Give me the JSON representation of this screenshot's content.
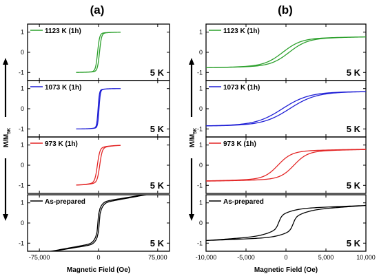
{
  "figure": {
    "ylabel_main": "M/M",
    "ylabel_sub": "5K",
    "xlabel": "Magnetic Field (Oe)"
  },
  "chart_data": [
    {
      "type": "line",
      "title": "(a)",
      "xlabel": "Magnetic Field (Oe)",
      "ylabel": "M/M5K",
      "xlim": [
        -90000,
        90000
      ],
      "xticks": [
        -75000,
        0,
        75000
      ],
      "xtick_labels": [
        "-75,000",
        "0",
        "75,000"
      ],
      "grid": false,
      "panels": [
        {
          "legend": "1123 K (1h)",
          "color": "#2ca02c",
          "annotation": "5 K",
          "ylim": [
            -1.4,
            1.4
          ],
          "yticks": [
            -1,
            0,
            1
          ],
          "loop": {
            "hmax": 28000,
            "hc": 1200,
            "ms": 1.0,
            "sat": 0.94,
            "width": 2600
          }
        },
        {
          "legend": "1073 K (1h)",
          "color": "#1f1fd6",
          "annotation": "5 K",
          "ylim": [
            -1.4,
            1.4
          ],
          "yticks": [
            -1,
            0,
            1
          ],
          "loop": {
            "hmax": 28000,
            "hc": 600,
            "ms": 1.0,
            "sat": 0.93,
            "width": 1700
          }
        },
        {
          "legend": "973 K (1h)",
          "color": "#e32626",
          "annotation": "5 K",
          "ylim": [
            -1.4,
            1.4
          ],
          "yticks": [
            -1,
            0,
            1
          ],
          "loop": {
            "hmax": 28000,
            "hc": 1500,
            "ms": 1.0,
            "sat": 0.85,
            "width": 3200
          }
        },
        {
          "legend": "As-prepared",
          "color": "#000000",
          "annotation": "5 K",
          "ylim": [
            -1.4,
            1.4
          ],
          "yticks": [
            -1,
            0,
            1
          ],
          "loop": {
            "hmax": 85000,
            "hc": 800,
            "ms": 1.0,
            "sat": 0.42,
            "width": 900,
            "slope": 6.8e-06,
            "split": 0.06
          }
        }
      ]
    },
    {
      "type": "line",
      "title": "(b)",
      "xlabel": "Magnetic Field (Oe)",
      "ylabel": "M/M5K",
      "xlim": [
        -10000,
        10000
      ],
      "xticks": [
        -10000,
        -5000,
        0,
        5000,
        10000
      ],
      "xtick_labels": [
        "-10,000",
        "-5,000",
        "0",
        "5,000",
        "10,000"
      ],
      "grid": false,
      "panels": [
        {
          "legend": "1123 K (1h)",
          "color": "#2ca02c",
          "annotation": "5 K",
          "ylim": [
            -1.4,
            1.4
          ],
          "yticks": [
            -1,
            0,
            1
          ],
          "loop": {
            "hmax": 10000,
            "hc": 400,
            "ms": 0.82,
            "sat": 0.82,
            "width": 2300
          }
        },
        {
          "legend": "1073 K (1h)",
          "color": "#1f1fd6",
          "annotation": "5 K",
          "ylim": [
            -1.4,
            1.4
          ],
          "yticks": [
            -1,
            0,
            1
          ],
          "loop": {
            "hmax": 10000,
            "hc": 450,
            "ms": 0.9,
            "sat": 0.9,
            "width": 3300
          }
        },
        {
          "legend": "973 K (1h)",
          "color": "#e32626",
          "annotation": "5 K",
          "ylim": [
            -1.4,
            1.4
          ],
          "yticks": [
            -1,
            0,
            1
          ],
          "loop": {
            "hmax": 10000,
            "hc": 1000,
            "ms": 0.82,
            "sat": 0.82,
            "width": 1700
          }
        },
        {
          "legend": "As-prepared",
          "color": "#000000",
          "annotation": "5 K",
          "ylim": [
            -1.4,
            1.4
          ],
          "yticks": [
            -1,
            0,
            1
          ],
          "loop": {
            "hmax": 10000,
            "hc": 900,
            "ms": 0.65,
            "sat": 0.45,
            "width": 350,
            "slope": 2.2e-05,
            "split": 0.12
          }
        }
      ]
    }
  ]
}
